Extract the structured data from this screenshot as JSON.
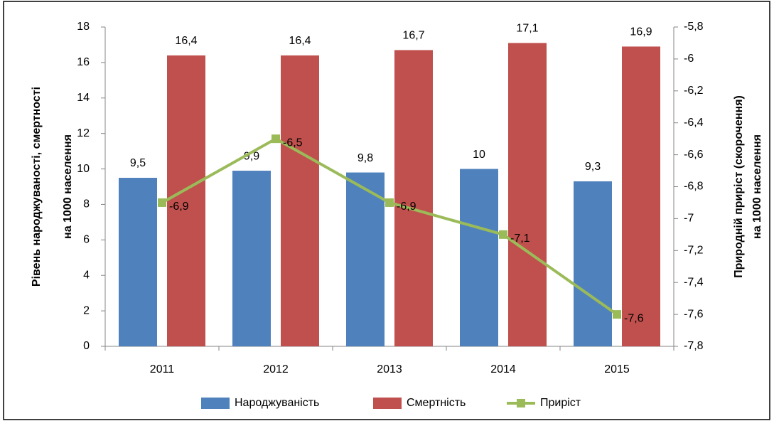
{
  "chart_data": {
    "type": "bar",
    "categories": [
      "2011",
      "2012",
      "2013",
      "2014",
      "2015"
    ],
    "series": [
      {
        "name": "Народжуваність",
        "color": "#4f81bd",
        "values": [
          9.5,
          9.9,
          9.8,
          10,
          9.3
        ],
        "value_labels": [
          "9,5",
          "9,9",
          "9,8",
          "10",
          "9,3"
        ]
      },
      {
        "name": "Смертність",
        "color": "#c0504d",
        "values": [
          16.4,
          16.4,
          16.7,
          17.1,
          16.9
        ],
        "value_labels": [
          "16,4",
          "16,4",
          "16,7",
          "17,1",
          "16,9"
        ]
      },
      {
        "name": "Приріст",
        "type": "line",
        "axis": "y2",
        "color": "#9bbb59",
        "values": [
          -6.9,
          -6.5,
          -6.9,
          -7.1,
          -7.6
        ],
        "value_labels": [
          "-6,9",
          "-6,5",
          "-6,9",
          "-7,1",
          "-7,6"
        ]
      }
    ],
    "ylabel": [
      "Рівень народжуваності,  смертності",
      "на 1000 населення"
    ],
    "y2label": [
      "Природній приріст (скорочення)",
      "на 1000 населення"
    ],
    "ylim": [
      0,
      18
    ],
    "yticks": [
      0,
      2,
      4,
      6,
      8,
      10,
      12,
      14,
      16,
      18
    ],
    "y2lim": [
      -7.8,
      -5.8
    ],
    "y2ticks": [
      {
        "value": -7.8,
        "label": "-7,8"
      },
      {
        "value": -7.6,
        "label": "-7,6"
      },
      {
        "value": -7.4,
        "label": "-7,4"
      },
      {
        "value": -7.2,
        "label": "-7,2"
      },
      -7,
      {
        "value": -6.8,
        "label": "-6,8"
      },
      {
        "value": -6.6,
        "label": "-6,6"
      },
      {
        "value": -6.4,
        "label": "-6,4"
      },
      {
        "value": -6.2,
        "label": "-6,2"
      },
      -6,
      {
        "value": -5.8,
        "label": "-5,8"
      }
    ],
    "legend": "bottom"
  }
}
